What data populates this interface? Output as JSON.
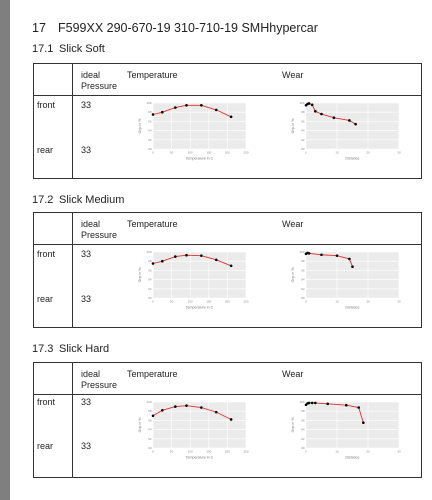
{
  "section": {
    "number": "17",
    "title": "F599XX 290-670-19 310-710-19 SMHhypercar"
  },
  "subsections": [
    {
      "number": "17.1",
      "title": "Slick Soft",
      "table": {
        "col_pressure": [
          "ideal",
          "Pressure"
        ],
        "col_temperature": "Temperature",
        "col_wear": "Wear",
        "front_label": "front",
        "front_pressure": "33",
        "rear_label": "rear",
        "rear_pressure": "33"
      }
    },
    {
      "number": "17.2",
      "title": "Slick Medium",
      "table": {
        "col_pressure": [
          "ideal",
          "Pressure"
        ],
        "col_temperature": "Temperature",
        "col_wear": "Wear",
        "front_label": "front",
        "front_pressure": "33",
        "rear_label": "rear",
        "rear_pressure": "33"
      }
    },
    {
      "number": "17.3",
      "title": "Slick Hard",
      "table": {
        "col_pressure": [
          "ideal",
          "Pressure"
        ],
        "col_temperature": "Temperature",
        "col_wear": "Wear",
        "front_label": "front",
        "front_pressure": "33",
        "rear_label": "rear",
        "rear_pressure": "33"
      }
    }
  ],
  "chart_data": [
    {
      "type": "line",
      "xlabel": "Temperature in C",
      "ylabel": "Grip in %",
      "xlim": [
        0,
        250
      ],
      "ylim": [
        90,
        100
      ],
      "xticks": [
        0,
        50,
        100,
        150,
        200,
        250
      ],
      "yticks": [
        90,
        92,
        94,
        96,
        98,
        100
      ],
      "x": [
        0,
        25,
        60,
        90,
        130,
        170,
        210
      ],
      "y": [
        97.5,
        98,
        99,
        99.5,
        99.5,
        98.5,
        97
      ],
      "line_color": "#e03030",
      "grid": true
    },
    {
      "type": "line",
      "xlabel": "Distance",
      "ylabel": "Grip in %",
      "xlim": [
        0,
        30
      ],
      "ylim": [
        90,
        100
      ],
      "xticks": [
        0,
        10,
        20,
        30
      ],
      "yticks": [
        90,
        92,
        94,
        96,
        98,
        100
      ],
      "x": [
        0,
        0.5,
        1,
        2,
        3,
        5,
        9,
        14,
        16
      ],
      "y": [
        99.5,
        99.8,
        99.9,
        99.6,
        98.2,
        97.6,
        96.8,
        96.2,
        95.4
      ],
      "line_color": "#e03030",
      "grid": true
    },
    {
      "type": "line",
      "xlabel": "Temperature in C",
      "ylabel": "Grip in %",
      "xlim": [
        0,
        250
      ],
      "ylim": [
        90,
        100
      ],
      "xticks": [
        0,
        50,
        100,
        150,
        200,
        250
      ],
      "yticks": [
        90,
        92,
        94,
        96,
        98,
        100
      ],
      "x": [
        0,
        25,
        60,
        90,
        130,
        170,
        210
      ],
      "y": [
        97.5,
        98,
        99,
        99.3,
        99.2,
        98.3,
        97
      ],
      "line_color": "#e03030",
      "grid": true
    },
    {
      "type": "line",
      "xlabel": "Distance",
      "ylabel": "Grip in %",
      "xlim": [
        0,
        30
      ],
      "ylim": [
        90,
        100
      ],
      "xticks": [
        0,
        10,
        20,
        30
      ],
      "yticks": [
        90,
        92,
        94,
        96,
        98,
        100
      ],
      "x": [
        0,
        0.5,
        1,
        5,
        10,
        14,
        15
      ],
      "y": [
        99.6,
        99.8,
        99.7,
        99.4,
        99.2,
        98.5,
        96.8
      ],
      "line_color": "#e03030",
      "grid": true
    },
    {
      "type": "line",
      "xlabel": "Temperature in C",
      "ylabel": "Grip in %",
      "xlim": [
        0,
        250
      ],
      "ylim": [
        90,
        100
      ],
      "xticks": [
        0,
        50,
        100,
        150,
        200,
        250
      ],
      "yticks": [
        90,
        92,
        94,
        96,
        98,
        100
      ],
      "x": [
        0,
        25,
        60,
        90,
        130,
        170,
        210
      ],
      "y": [
        97,
        98.2,
        99,
        99.2,
        98.8,
        97.8,
        96.2
      ],
      "line_color": "#e03030",
      "grid": true
    },
    {
      "type": "line",
      "xlabel": "Distance",
      "ylabel": "Grip in %",
      "xlim": [
        0,
        30
      ],
      "ylim": [
        90,
        100
      ],
      "xticks": [
        0,
        10,
        20,
        30
      ],
      "yticks": [
        90,
        92,
        94,
        96,
        98,
        100
      ],
      "x": [
        0,
        0.5,
        1,
        2,
        3,
        7,
        13,
        17,
        18.5
      ],
      "y": [
        99.4,
        99.7,
        99.8,
        99.8,
        99.8,
        99.6,
        99.3,
        98.8,
        95.5
      ],
      "line_color": "#e03030",
      "grid": true
    }
  ]
}
